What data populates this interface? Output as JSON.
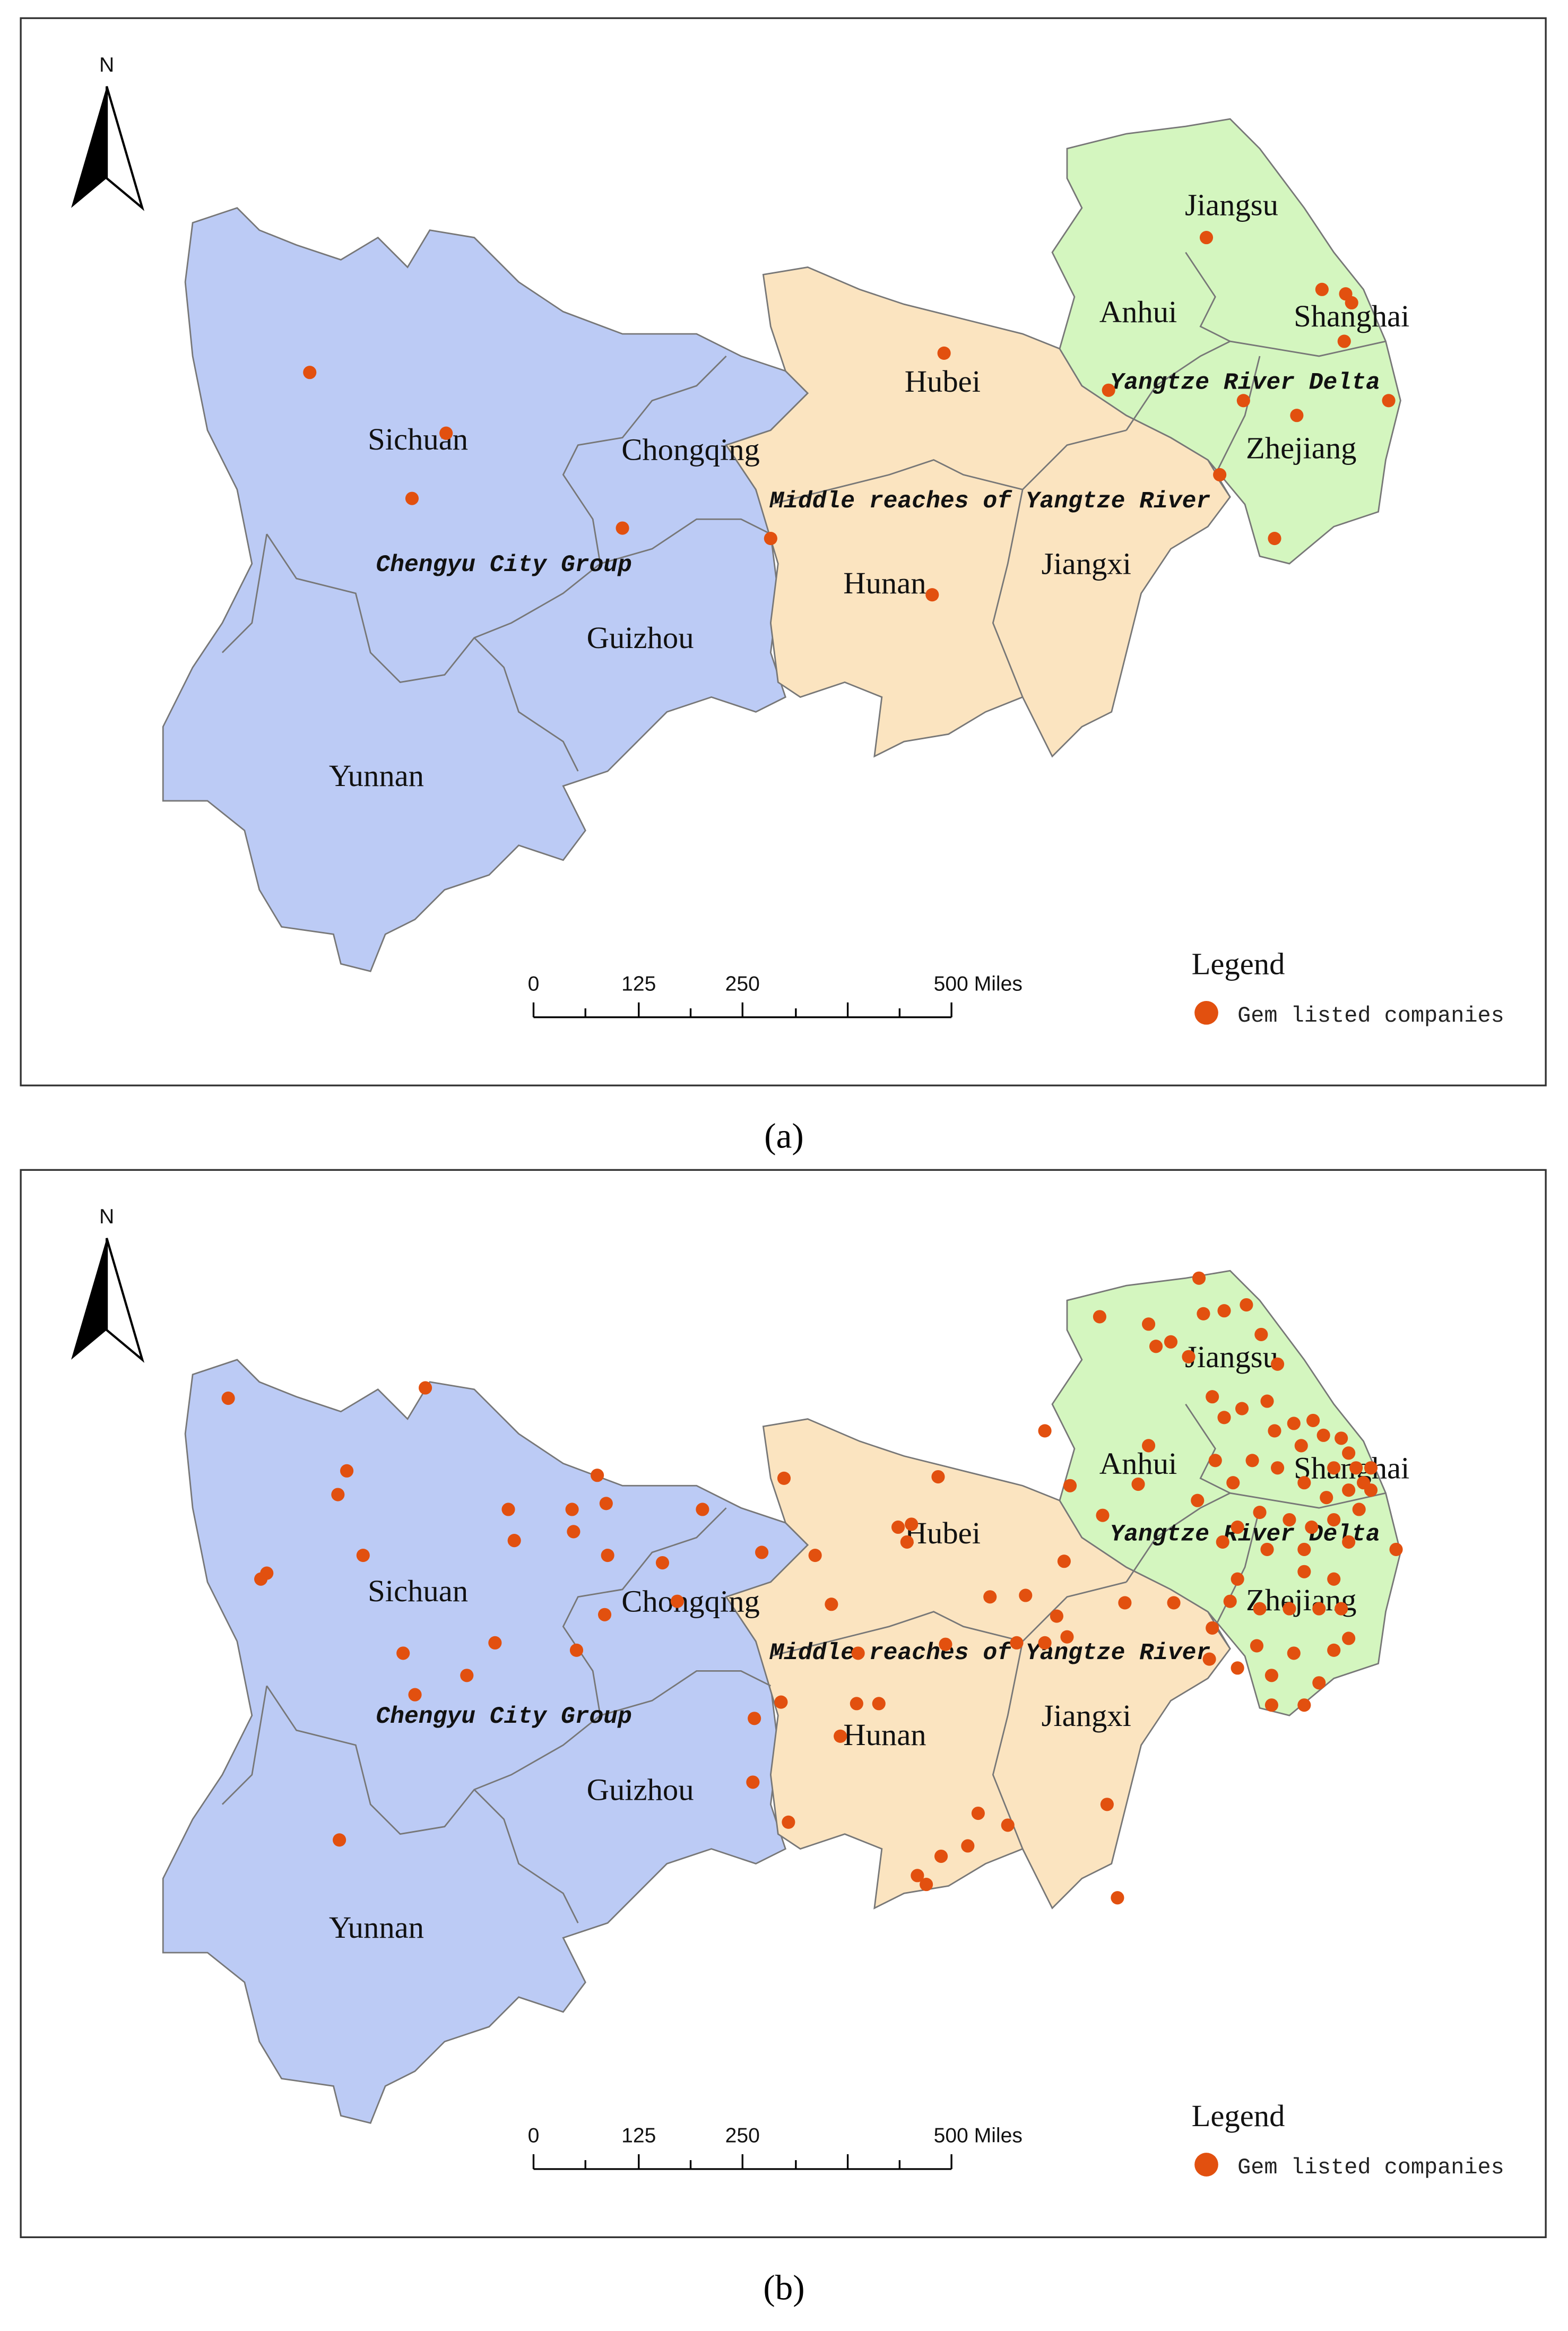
{
  "figure": {
    "panels": [
      {
        "caption": "(a)",
        "north": "N",
        "regions": [
          "Sichuan",
          "Chongqing",
          "Chengyu City Group",
          "Guizhou",
          "Yunnan",
          "Hubei",
          "Hunan",
          "Jiangxi",
          "Middle reaches of Yangtze River",
          "Jiangsu",
          "Anhui",
          "Shanghai",
          "Yangtze River Delta",
          "Zhejiang"
        ],
        "scale_bar": [
          "0",
          "125",
          "250",
          "500 Miles"
        ],
        "legend": {
          "title": "Legend",
          "item": "Gem listed companies"
        }
      },
      {
        "caption": "(b)",
        "north": "N",
        "regions": [
          "Sichuan",
          "Chongqing",
          "Chengyu City Group",
          "Guizhou",
          "Yunnan",
          "Hubei",
          "Hunan",
          "Jiangxi",
          "Middle reaches of Yangtze River",
          "Jiangsu",
          "Anhui",
          "Shanghai",
          "Yangtze River Delta",
          "Zhejiang"
        ],
        "scale_bar": [
          "0",
          "125",
          "250",
          "500 Miles"
        ],
        "legend": {
          "title": "Legend",
          "item": "Gem listed companies"
        }
      }
    ]
  }
}
